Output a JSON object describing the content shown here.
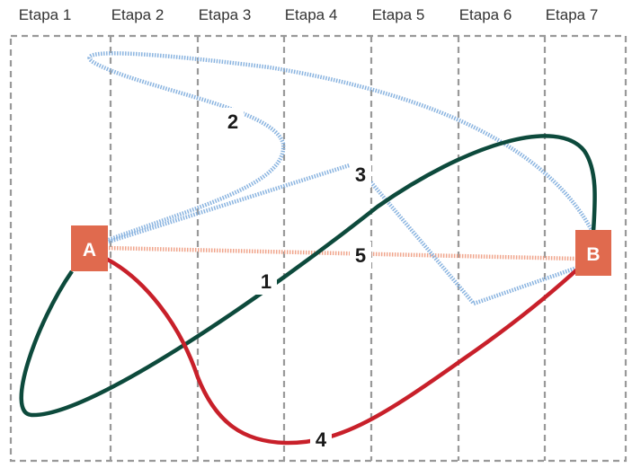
{
  "stages": [
    "Etapa 1",
    "Etapa 2",
    "Etapa 3",
    "Etapa 4",
    "Etapa 5",
    "Etapa 6",
    "Etapa 7"
  ],
  "nodes": {
    "a": {
      "label": "A"
    },
    "b": {
      "label": "B"
    }
  },
  "routes": [
    {
      "label": "1",
      "color": "#0d4a3c",
      "style": "solid"
    },
    {
      "label": "2",
      "color": "#8ab4e0",
      "style": "dotted"
    },
    {
      "label": "3",
      "color": "#8ab4e0",
      "style": "dotted"
    },
    {
      "label": "4",
      "color": "#c8202a",
      "style": "solid"
    },
    {
      "label": "5",
      "color": "#f0a58c",
      "style": "dotted"
    }
  ],
  "colors": {
    "node_fill": "#e06a4e",
    "grid": "#999999"
  }
}
